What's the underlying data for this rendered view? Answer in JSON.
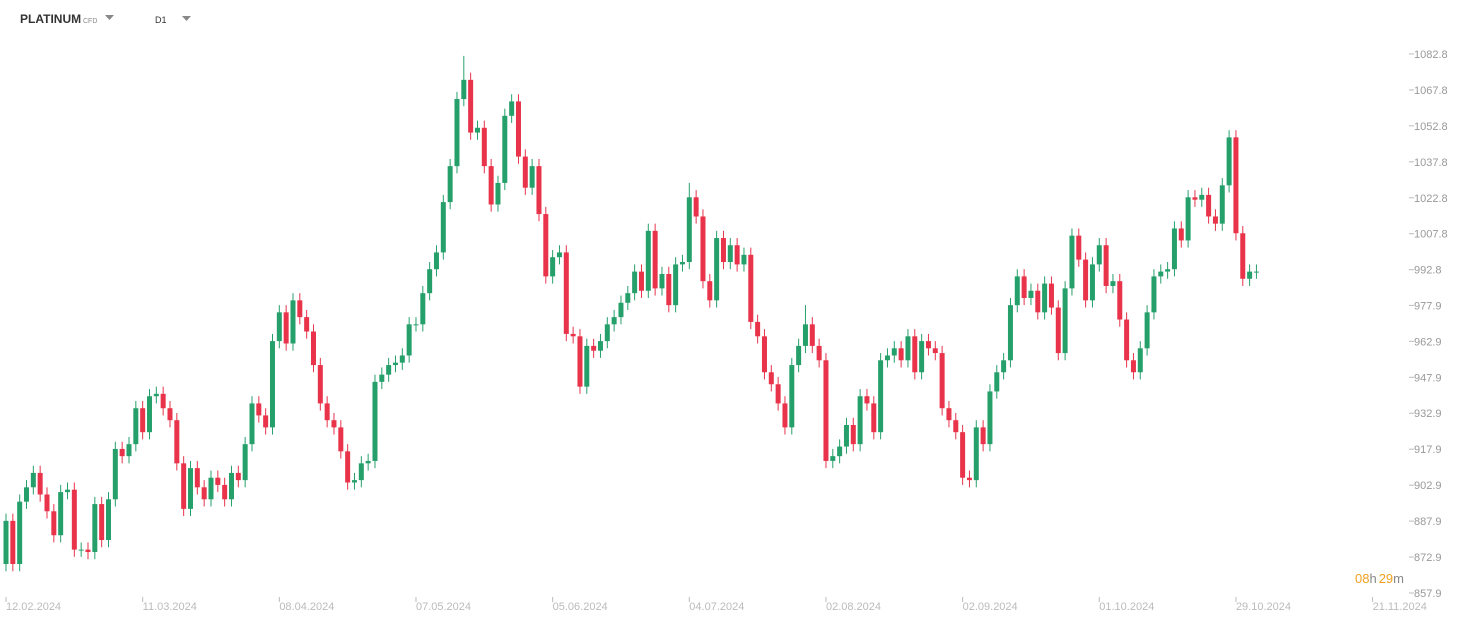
{
  "header": {
    "symbol": "PLATINUM",
    "instrument_type": "CFD",
    "timeframe": "D1"
  },
  "timer": {
    "hours": "08",
    "hours_unit": "h",
    "minutes": "29",
    "minutes_unit": "m"
  },
  "chart_data": {
    "type": "candlestick",
    "up_color": "#26a06b",
    "down_color": "#e8334a",
    "ylim": [
      857.9,
      1092.8
    ],
    "yticks": [
      857.9,
      872.9,
      887.9,
      902.9,
      917.9,
      932.9,
      947.9,
      962.9,
      977.9,
      992.8,
      1007.8,
      1022.8,
      1037.8,
      1052.8,
      1067.8,
      1082.8
    ],
    "xticks": [
      {
        "value": 0,
        "label": "12.02.2024"
      },
      {
        "value": 20,
        "label": "11.03.2024"
      },
      {
        "value": 40,
        "label": "08.04.2024"
      },
      {
        "value": 60,
        "label": "07.05.2024"
      },
      {
        "value": 80,
        "label": "05.06.2024"
      },
      {
        "value": 100,
        "label": "04.07.2024"
      },
      {
        "value": 120,
        "label": "02.08.2024"
      },
      {
        "value": 140,
        "label": "02.09.2024"
      },
      {
        "value": 160,
        "label": "01.10.2024"
      },
      {
        "value": 180,
        "label": "29.10.2024"
      },
      {
        "value": 200,
        "label": "21.11.2024"
      }
    ],
    "open": [
      870,
      888,
      870,
      896,
      902,
      908,
      899,
      892,
      882,
      900,
      901,
      876,
      876,
      875,
      895,
      880,
      897,
      918,
      915,
      920,
      935,
      925,
      940,
      941,
      935,
      930,
      912,
      893,
      910,
      902,
      897,
      906,
      903,
      897,
      908,
      905,
      920,
      937,
      932,
      927,
      963,
      975,
      962,
      980,
      973,
      967,
      953,
      937,
      930,
      927,
      917,
      904,
      905,
      912,
      913,
      946,
      949,
      953,
      954,
      957,
      970,
      970,
      983,
      993,
      1000,
      1021,
      1036,
      1064,
      1072,
      1050,
      1052,
      1036,
      1020,
      1029,
      1057,
      1063,
      1040,
      1027,
      1036,
      1016,
      990,
      998,
      1000,
      966,
      965,
      944,
      961,
      959,
      963,
      970,
      973,
      979,
      983,
      992,
      984,
      1009,
      985,
      991,
      978,
      995,
      996,
      1023,
      1015,
      988,
      980,
      1006,
      996,
      1003,
      995,
      999,
      971,
      965,
      950,
      945,
      937,
      927,
      953,
      961,
      970,
      961,
      955,
      913,
      915,
      919,
      928,
      920,
      940,
      937,
      925,
      955,
      957,
      960,
      955,
      965,
      950,
      963,
      960,
      958,
      935,
      930,
      925,
      906,
      905,
      927,
      920,
      942,
      950,
      955,
      978,
      990,
      981,
      984,
      975,
      987,
      977,
      958,
      985,
      1007,
      997,
      980,
      995,
      1003,
      986,
      988,
      972,
      955,
      950,
      960,
      975,
      990,
      992,
      993,
      1010,
      1005,
      1023,
      1022,
      1024,
      1015,
      1012,
      1028,
      1048,
      1008,
      989,
      992
    ],
    "high": [
      891,
      891,
      899,
      905,
      911,
      911,
      902,
      895,
      903,
      904,
      904,
      879,
      879,
      898,
      898,
      900,
      921,
      921,
      923,
      938,
      938,
      943,
      944,
      944,
      938,
      933,
      915,
      913,
      913,
      905,
      909,
      909,
      906,
      911,
      911,
      923,
      940,
      940,
      935,
      966,
      978,
      978,
      983,
      983,
      976,
      970,
      956,
      940,
      933,
      930,
      920,
      908,
      915,
      916,
      949,
      952,
      956,
      957,
      960,
      973,
      973,
      986,
      996,
      1003,
      1024,
      1039,
      1067,
      1082,
      1075,
      1055,
      1055,
      1039,
      1032,
      1060,
      1066,
      1066,
      1043,
      1039,
      1039,
      1019,
      1001,
      1003,
      1003,
      969,
      968,
      964,
      964,
      966,
      973,
      976,
      982,
      986,
      995,
      995,
      1012,
      1012,
      994,
      994,
      998,
      999,
      1029,
      1026,
      1018,
      991,
      1009,
      1009,
      1006,
      1006,
      1002,
      1002,
      974,
      968,
      953,
      948,
      940,
      956,
      964,
      978,
      973,
      964,
      958,
      918,
      922,
      931,
      931,
      943,
      943,
      940,
      958,
      960,
      963,
      963,
      968,
      968,
      966,
      966,
      963,
      961,
      938,
      933,
      928,
      909,
      930,
      930,
      945,
      953,
      958,
      981,
      993,
      993,
      987,
      987,
      990,
      990,
      980,
      988,
      1010,
      1010,
      1000,
      998,
      1006,
      1006,
      991,
      991,
      975,
      958,
      963,
      978,
      993,
      995,
      996,
      1013,
      1013,
      1026,
      1026,
      1027,
      1027,
      1018,
      1031,
      1051,
      1051,
      1011,
      995,
      995
    ],
    "low": [
      867,
      867,
      867,
      893,
      899,
      896,
      889,
      879,
      879,
      897,
      873,
      873,
      872,
      872,
      877,
      877,
      894,
      912,
      912,
      917,
      922,
      922,
      937,
      932,
      927,
      909,
      890,
      890,
      899,
      894,
      894,
      900,
      894,
      894,
      902,
      902,
      917,
      929,
      924,
      924,
      960,
      959,
      959,
      970,
      964,
      950,
      934,
      927,
      924,
      914,
      901,
      901,
      902,
      909,
      910,
      943,
      946,
      950,
      951,
      954,
      967,
      967,
      980,
      990,
      997,
      1018,
      1033,
      1061,
      1047,
      1047,
      1033,
      1017,
      1017,
      1026,
      1054,
      1037,
      1024,
      1024,
      1013,
      987,
      987,
      995,
      963,
      962,
      941,
      941,
      956,
      956,
      960,
      967,
      970,
      976,
      980,
      981,
      981,
      982,
      982,
      975,
      975,
      992,
      993,
      1012,
      985,
      977,
      977,
      993,
      993,
      992,
      992,
      968,
      962,
      947,
      942,
      934,
      924,
      924,
      950,
      958,
      958,
      952,
      910,
      910,
      912,
      916,
      917,
      917,
      934,
      922,
      922,
      952,
      954,
      952,
      952,
      947,
      947,
      957,
      955,
      932,
      927,
      922,
      903,
      902,
      902,
      917,
      917,
      939,
      947,
      952,
      975,
      978,
      978,
      972,
      972,
      974,
      955,
      955,
      982,
      994,
      977,
      977,
      992,
      983,
      983,
      969,
      952,
      947,
      947,
      957,
      972,
      987,
      989,
      990,
      1002,
      1002,
      1019,
      1019,
      1012,
      1009,
      1009,
      1025,
      1005,
      986,
      986,
      989
    ],
    "close": [
      888,
      870,
      896,
      902,
      908,
      899,
      892,
      882,
      900,
      901,
      876,
      876,
      875,
      895,
      880,
      897,
      918,
      915,
      920,
      935,
      925,
      940,
      941,
      935,
      930,
      912,
      893,
      910,
      902,
      897,
      906,
      903,
      897,
      908,
      905,
      920,
      937,
      932,
      927,
      963,
      975,
      962,
      980,
      973,
      967,
      953,
      937,
      930,
      927,
      917,
      904,
      905,
      912,
      913,
      946,
      949,
      953,
      954,
      957,
      970,
      970,
      983,
      993,
      1000,
      1021,
      1036,
      1064,
      1072,
      1050,
      1052,
      1036,
      1020,
      1029,
      1057,
      1063,
      1040,
      1027,
      1036,
      1016,
      990,
      998,
      1000,
      966,
      965,
      944,
      961,
      959,
      963,
      970,
      973,
      979,
      983,
      992,
      984,
      1009,
      985,
      991,
      978,
      995,
      996,
      1023,
      1015,
      988,
      980,
      1006,
      996,
      1003,
      995,
      999,
      971,
      965,
      950,
      945,
      937,
      927,
      953,
      961,
      970,
      961,
      955,
      913,
      915,
      919,
      928,
      920,
      940,
      937,
      925,
      955,
      957,
      960,
      955,
      965,
      950,
      963,
      960,
      958,
      935,
      930,
      925,
      906,
      905,
      927,
      920,
      942,
      950,
      955,
      978,
      990,
      981,
      984,
      975,
      987,
      977,
      958,
      985,
      1007,
      997,
      980,
      995,
      1003,
      986,
      988,
      972,
      955,
      950,
      960,
      975,
      990,
      992,
      993,
      1010,
      1005,
      1023,
      1022,
      1024,
      1015,
      1012,
      1028,
      1048,
      1008,
      989,
      992,
      992
    ]
  }
}
